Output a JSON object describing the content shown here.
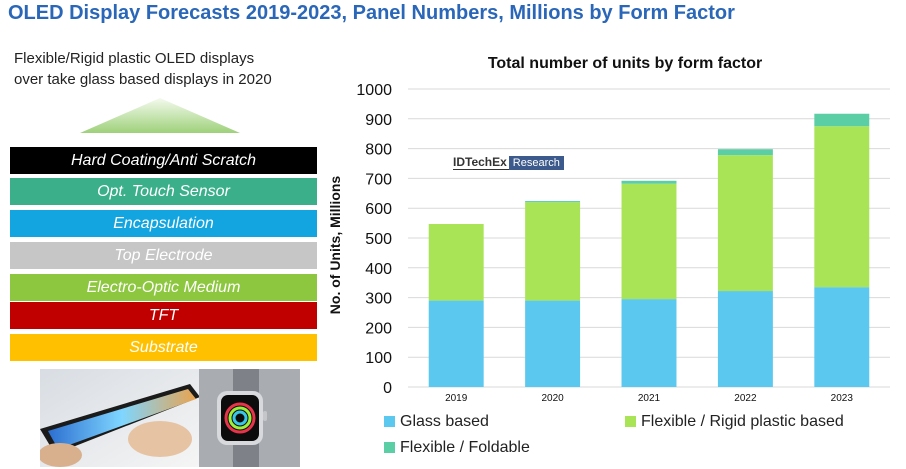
{
  "page": {
    "title": "OLED Display Forecasts 2019-2023, Panel Numbers, Millions by Form Factor",
    "subtitle_line1": "Flexible/Rigid plastic OLED displays",
    "subtitle_line2": "over take glass based displays in 2020"
  },
  "stack": {
    "layers": [
      {
        "label": "Hard Coating/Anti Scratch",
        "color": "#000000"
      },
      {
        "label": "Opt. Touch Sensor",
        "color": "#3aaf8a"
      },
      {
        "label": "Encapsulation",
        "color": "#12a5e0"
      },
      {
        "label": "Top Electrode",
        "color": "#c6c6c6"
      },
      {
        "label": "Electro-Optic Medium",
        "color": "#8dc63f"
      },
      {
        "label": "TFT",
        "color": "#c00000"
      },
      {
        "label": "Substrate",
        "color": "#ffc000"
      }
    ]
  },
  "watermark": {
    "brand": "IDTechEx",
    "tag": "Research"
  },
  "chart_data": {
    "type": "bar",
    "stacked": true,
    "title": "Total number of units by form factor",
    "xlabel": "",
    "ylabel": "No. of Units, Millions",
    "ylim": [
      0,
      1000
    ],
    "yticks": [
      "0",
      "100",
      "200",
      "300",
      "400",
      "500",
      "600",
      "700",
      "800",
      "900",
      "1000"
    ],
    "categories": [
      "2019",
      "2020",
      "2021",
      "2022",
      "2023"
    ],
    "grid": true,
    "legend_position": "bottom",
    "series": [
      {
        "name": "Glass based",
        "color": "#5bc8ef",
        "values": [
          290,
          290,
          295,
          322,
          335
        ]
      },
      {
        "name": "Flexible / Rigid plastic based",
        "color": "#a8e455",
        "values": [
          257,
          330,
          387,
          456,
          540
        ]
      },
      {
        "name": "Flexible / Foldable",
        "color": "#5ccea5",
        "values": [
          0,
          4,
          10,
          20,
          42
        ]
      }
    ]
  }
}
